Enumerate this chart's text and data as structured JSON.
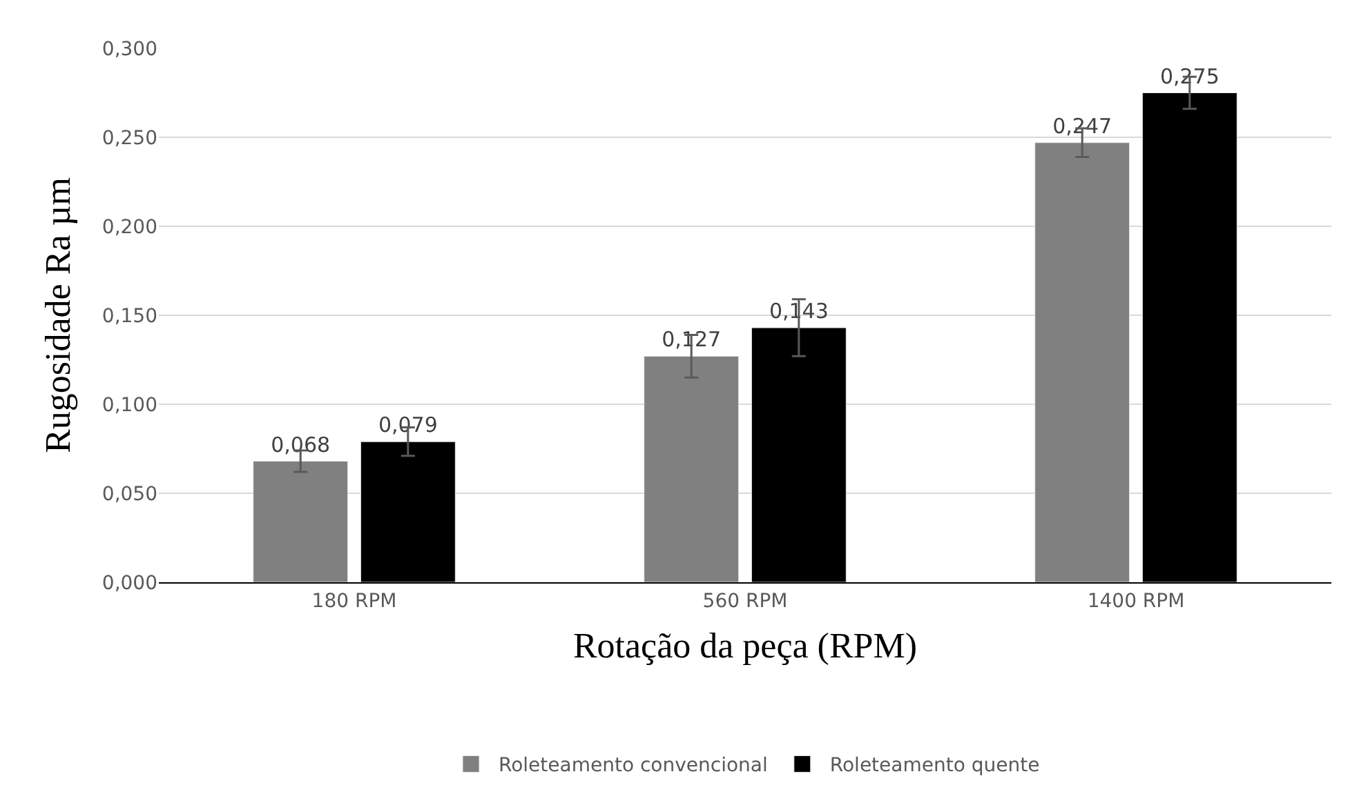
{
  "chart_data": {
    "type": "bar",
    "xlabel": "Rotação da peça (RPM)",
    "ylabel": "Rugosidade Ra µm",
    "categories": [
      "180 RPM",
      "560 RPM",
      "1400 RPM"
    ],
    "series": [
      {
        "name": "Roleteamento convencional",
        "color": "#808080",
        "values": [
          0.068,
          0.127,
          0.247
        ],
        "value_labels": [
          "0,068",
          "0,127",
          "0,247"
        ],
        "errors": [
          0.006,
          0.012,
          0.008
        ]
      },
      {
        "name": "Roleteamento quente",
        "color": "#000000",
        "values": [
          0.079,
          0.143,
          0.275
        ],
        "value_labels": [
          "0,079",
          "0,143",
          "0,275"
        ],
        "errors": [
          0.008,
          0.016,
          0.009
        ]
      }
    ],
    "ylim": [
      0,
      0.3
    ],
    "yticks": [
      {
        "value": 0,
        "label": "0,000"
      },
      {
        "value": 0.05,
        "label": "0,050"
      },
      {
        "value": 0.1,
        "label": "0,100"
      },
      {
        "value": 0.15,
        "label": "0,150"
      },
      {
        "value": 0.2,
        "label": "0,200"
      },
      {
        "value": 0.25,
        "label": "0,250"
      },
      {
        "value": 0.3,
        "label": "0,300"
      }
    ],
    "grid": "y",
    "legend": "bottom"
  }
}
